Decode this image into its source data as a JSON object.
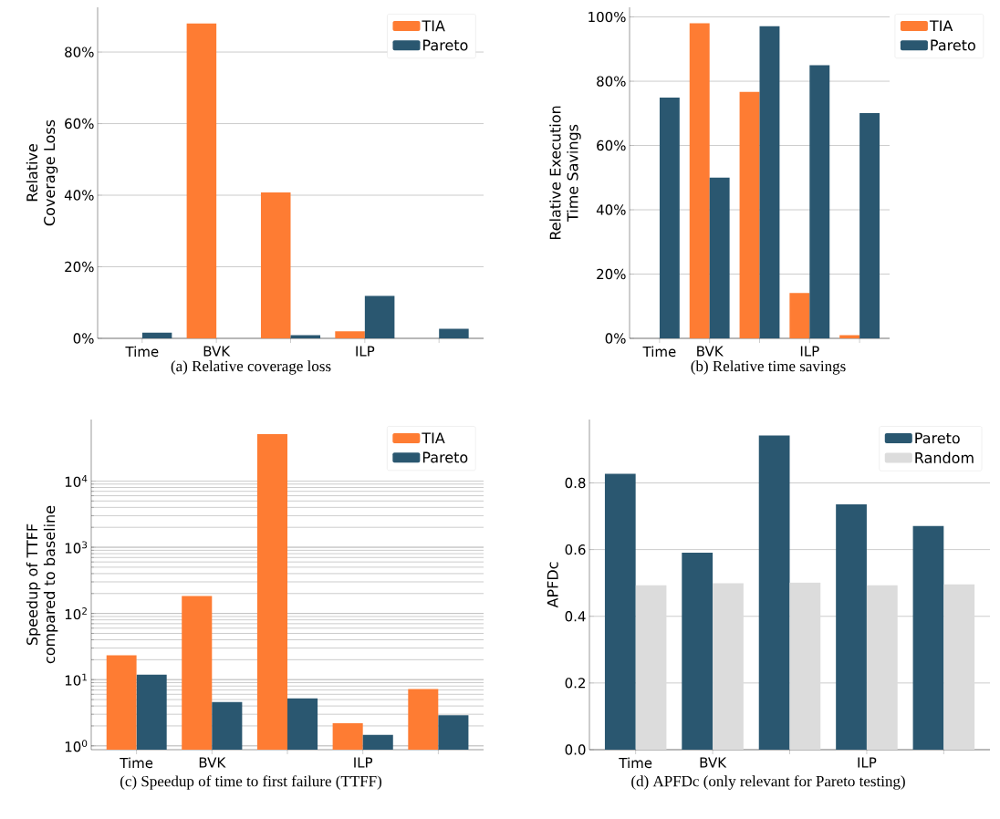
{
  "chart_data": [
    {
      "type": "bar",
      "title": "(a) Relative coverage loss",
      "ylabel": "Relative Coverage Loss",
      "categories": [
        "Time",
        "BVK",
        null,
        "ILP",
        null
      ],
      "series": [
        {
          "name": "TIA",
          "color": "#fe7c33",
          "values": [
            0,
            88.0,
            40.8,
            2.0,
            0
          ]
        },
        {
          "name": "Pareto",
          "color": "#2a5770",
          "values": [
            1.6,
            0,
            0.9,
            11.9,
            2.7
          ]
        }
      ],
      "ylim": [
        0,
        92.5
      ],
      "yticks": [
        {
          "value": 0,
          "label": "0%"
        },
        {
          "value": 20,
          "label": "20%"
        },
        {
          "value": 40,
          "label": "40%"
        },
        {
          "value": 60,
          "label": "60%"
        },
        {
          "value": 80,
          "label": "80%"
        }
      ],
      "grid": "y",
      "legend": "top right"
    },
    {
      "type": "bar",
      "title": "(b) Relative time savings",
      "ylabel": "Relative Execution Time Savings",
      "categories": [
        "Time",
        "BVK",
        null,
        "ILP",
        null
      ],
      "series": [
        {
          "name": "TIA",
          "color": "#fe7c33",
          "values": [
            0,
            98.0,
            76.7,
            14.1,
            1.0
          ]
        },
        {
          "name": "Pareto",
          "color": "#2a5770",
          "values": [
            74.9,
            50.0,
            97.1,
            85.0,
            70.1
          ]
        }
      ],
      "ylim": [
        0,
        103
      ],
      "yticks": [
        {
          "value": 0,
          "label": "0%"
        },
        {
          "value": 20,
          "label": "20%"
        },
        {
          "value": 40,
          "label": "40%"
        },
        {
          "value": 60,
          "label": "60%"
        },
        {
          "value": 80,
          "label": "80%"
        },
        {
          "value": 100,
          "label": "100%"
        }
      ],
      "grid": "y",
      "legend": "top right"
    },
    {
      "type": "bar",
      "title": "(c) Speedup of time to first failure (TTFF)",
      "ylabel": "Speedup of TTFF compared to baseline",
      "categories": [
        "Time",
        "BVK",
        null,
        "ILP",
        null
      ],
      "series": [
        {
          "name": "TIA",
          "color": "#fe7c33",
          "values": [
            23.3,
            184,
            51300,
            2.2,
            7.2
          ]
        },
        {
          "name": "Pareto",
          "color": "#2a5770",
          "values": [
            11.9,
            4.6,
            5.2,
            1.46,
            2.9
          ]
        }
      ],
      "log": "y",
      "ylim": [
        0.875,
        85000
      ],
      "yticks": [
        {
          "value": 1,
          "label": "10$^{0}$"
        },
        {
          "value": 10,
          "label": "10$^{1}$"
        },
        {
          "value": 100,
          "label": "10$^{2}$"
        },
        {
          "value": 1000,
          "label": "10$^{3}$"
        },
        {
          "value": 10000,
          "label": "10$^{4}$"
        }
      ],
      "grid": "y",
      "legend": "top right"
    },
    {
      "type": "bar",
      "title": "(d) APFDc (only relevant for Pareto testing)",
      "ylabel": "APFDc",
      "categories": [
        "Time",
        "BVK",
        null,
        "ILP",
        null
      ],
      "series": [
        {
          "name": "Pareto",
          "color": "#2a5770",
          "values": [
            0.827,
            0.591,
            0.942,
            0.736,
            0.671
          ]
        },
        {
          "name": "Random",
          "color": "#dcdcdc",
          "values": [
            0.493,
            0.499,
            0.501,
            0.493,
            0.496
          ]
        }
      ],
      "ylim": [
        0,
        0.99
      ],
      "yticks": [
        {
          "value": 0.0,
          "label": "0.0"
        },
        {
          "value": 0.2,
          "label": "0.2"
        },
        {
          "value": 0.4,
          "label": "0.4"
        },
        {
          "value": 0.6,
          "label": "0.6"
        },
        {
          "value": 0.8,
          "label": "0.8"
        }
      ],
      "grid": "y",
      "legend": "top right"
    }
  ]
}
